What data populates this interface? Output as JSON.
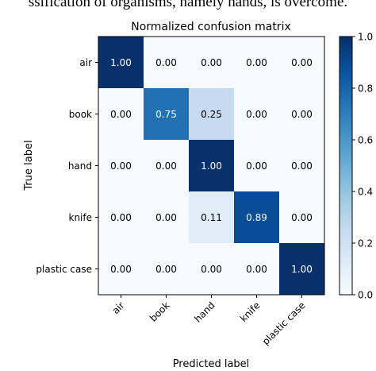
{
  "caption_fragment": "ssification of organisms, namely hands, is overcome.",
  "chart_data": {
    "type": "heatmap",
    "title": "Normalized confusion matrix",
    "xlabel": "Predicted label",
    "ylabel": "True label",
    "x_categories": [
      "air",
      "book",
      "hand",
      "knife",
      "plastic case"
    ],
    "y_categories": [
      "air",
      "book",
      "hand",
      "knife",
      "plastic case"
    ],
    "values": [
      [
        1.0,
        0.0,
        0.0,
        0.0,
        0.0
      ],
      [
        0.0,
        0.75,
        0.25,
        0.0,
        0.0
      ],
      [
        0.0,
        0.0,
        1.0,
        0.0,
        0.0
      ],
      [
        0.0,
        0.0,
        0.11,
        0.89,
        0.0
      ],
      [
        0.0,
        0.0,
        0.0,
        0.0,
        1.0
      ]
    ],
    "value_labels": [
      [
        "1.00",
        "0.00",
        "0.00",
        "0.00",
        "0.00"
      ],
      [
        "0.00",
        "0.75",
        "0.25",
        "0.00",
        "0.00"
      ],
      [
        "0.00",
        "0.00",
        "1.00",
        "0.00",
        "0.00"
      ],
      [
        "0.00",
        "0.00",
        "0.11",
        "0.89",
        "0.00"
      ],
      [
        "0.00",
        "0.00",
        "0.00",
        "0.00",
        "1.00"
      ]
    ],
    "colormap": "Blues",
    "colormap_low": "#f7fbff",
    "colormap_high": "#08306b",
    "value_range": [
      0.0,
      1.0
    ],
    "colorbar_ticks": [
      "0.0",
      "0.2",
      "0.4",
      "0.6",
      "0.8",
      "1.0"
    ],
    "colorbar_tick_values": [
      0.0,
      0.2,
      0.4,
      0.6,
      0.8,
      1.0
    ],
    "grid": false,
    "colorbar_position": "right"
  }
}
